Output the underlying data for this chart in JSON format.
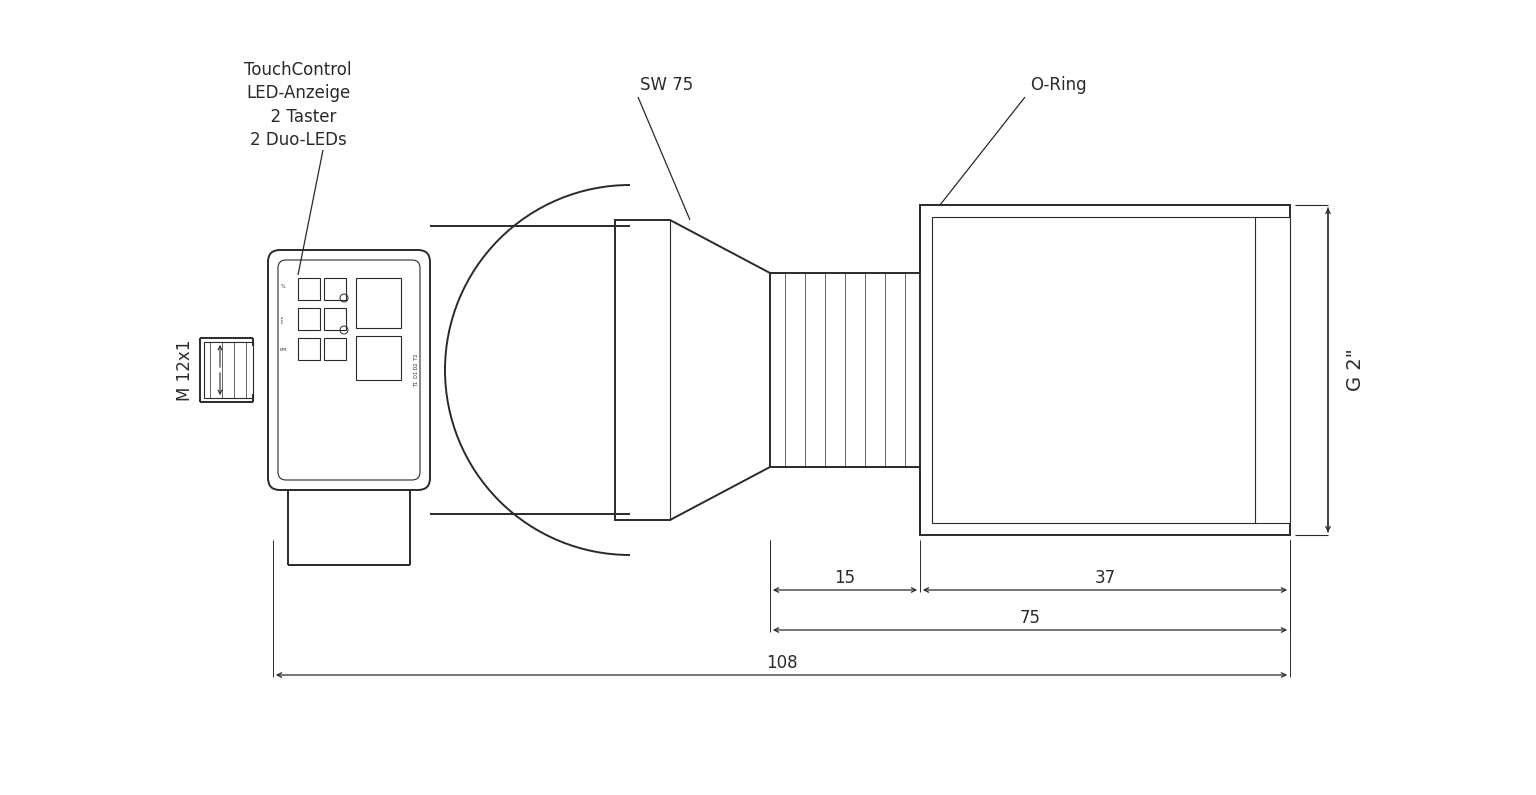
{
  "bg_color": "#ffffff",
  "line_color": "#2a2a2a",
  "lw": 1.4,
  "tlw": 0.8,
  "labels": {
    "touch_control": "TouchControl\nLED-Anzeige\n  2 Taster\n2 Duo-LEDs",
    "sw75": "SW 75",
    "o_ring": "O-Ring",
    "m12": "M 12x1",
    "g2": "G 2\"",
    "dim15": "15",
    "dim37": "37",
    "dim75": "75",
    "dim108": "108"
  },
  "font_size": 12
}
